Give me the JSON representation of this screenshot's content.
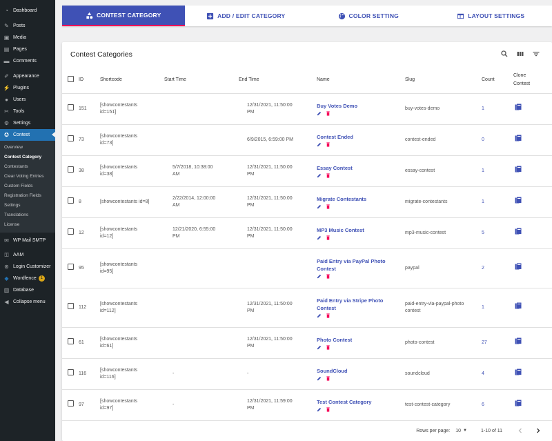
{
  "sidebar": {
    "items": [
      {
        "label": "Dashboard",
        "icon": "dashboard-icon"
      },
      {
        "label": "Posts",
        "icon": "pin-icon"
      },
      {
        "label": "Media",
        "icon": "media-icon"
      },
      {
        "label": "Pages",
        "icon": "pages-icon"
      },
      {
        "label": "Comments",
        "icon": "comment-icon"
      },
      {
        "label": "Appearance",
        "icon": "brush-icon"
      },
      {
        "label": "Plugins",
        "icon": "plug-icon"
      },
      {
        "label": "Users",
        "icon": "user-icon"
      },
      {
        "label": "Tools",
        "icon": "wrench-icon"
      },
      {
        "label": "Settings",
        "icon": "settings-icon"
      },
      {
        "label": "Contest",
        "icon": "award-icon"
      }
    ],
    "submenu": [
      "Overview",
      "Contest Category",
      "Contestants",
      "Clear Voting Entries",
      "Custom Fields",
      "Registration Fields",
      "Settings",
      "Translations",
      "License"
    ],
    "lower": [
      {
        "label": "WP Mail SMTP",
        "icon": "mail-icon"
      },
      {
        "label": "AAM",
        "icon": "lock-icon"
      },
      {
        "label": "Login Customizer",
        "icon": "login-icon"
      },
      {
        "label": "Wordfence",
        "icon": "shield-icon",
        "badge": "1"
      },
      {
        "label": "Database",
        "icon": "database-icon"
      },
      {
        "label": "Collapse menu",
        "icon": "collapse-icon"
      }
    ]
  },
  "tabs": [
    "CONTEST CATEGORY",
    "ADD / EDIT CATEGORY",
    "COLOR SETTING",
    "LAYOUT SETTINGS"
  ],
  "card": {
    "title": "Contest Categories"
  },
  "table": {
    "headers": {
      "id": "ID",
      "shortcode": "Shortcode",
      "start": "Start Time",
      "end": "End Time",
      "name": "Name",
      "slug": "Slug",
      "count": "Count",
      "clone1": "Clone",
      "clone2": "Contest"
    },
    "rows": [
      {
        "id": "151",
        "sc1": "[showcontestants",
        "sc2": "id=151]",
        "st1": "",
        "st2": "",
        "et1": "12/31/2021, 11:50:00",
        "et2": "PM",
        "name1": "Buy Votes Demo",
        "name2": "",
        "slug1": "buy-votes-demo",
        "slug2": "",
        "count": "1"
      },
      {
        "id": "73",
        "sc1": "[showcontestants",
        "sc2": "id=73]",
        "st1": "",
        "st2": "",
        "et1": "6/9/2015, 6:59:00 PM",
        "et2": "",
        "name1": "Contest Ended",
        "name2": "",
        "slug1": "contest-ended",
        "slug2": "",
        "count": "0"
      },
      {
        "id": "38",
        "sc1": "[showcontestants",
        "sc2": "id=38]",
        "st1": "5/7/2018, 10:38:00",
        "st2": "AM",
        "et1": "12/31/2021, 11:50:00",
        "et2": "PM",
        "name1": "Essay Contest",
        "name2": "",
        "slug1": "essay-contest",
        "slug2": "",
        "count": "1"
      },
      {
        "id": "8",
        "sc1": "[showcontestants id=8]",
        "sc2": "",
        "st1": "2/22/2014, 12:00:00",
        "st2": "AM",
        "et1": "12/31/2021, 11:50:00",
        "et2": "PM",
        "name1": "Migrate Contestants",
        "name2": "",
        "slug1": "migrate-contestants",
        "slug2": "",
        "count": "1"
      },
      {
        "id": "12",
        "sc1": "[showcontestants",
        "sc2": "id=12]",
        "st1": "12/21/2020, 6:55:00",
        "st2": "PM",
        "et1": "12/31/2021, 11:50:00",
        "et2": "PM",
        "name1": "MP3 Music Contest",
        "name2": "",
        "slug1": "mp3-music-contest",
        "slug2": "",
        "count": "5"
      },
      {
        "id": "95",
        "sc1": "[showcontestants",
        "sc2": "id=95]",
        "st1": "",
        "st2": "",
        "et1": "",
        "et2": "",
        "name1": "Paid Entry via PayPal Photo",
        "name2": "Contest",
        "slug1": "paypal",
        "slug2": "",
        "count": "2"
      },
      {
        "id": "112",
        "sc1": "[showcontestants",
        "sc2": "id=112]",
        "st1": "",
        "st2": "",
        "et1": "12/31/2021, 11:50:00",
        "et2": "PM",
        "name1": "Paid Entry via Stripe Photo",
        "name2": "Contest",
        "slug1": "paid-entry-via-paypal-photo",
        "slug2": "contest",
        "count": "1"
      },
      {
        "id": "61",
        "sc1": "[showcontestants",
        "sc2": "id=61]",
        "st1": "",
        "st2": "",
        "et1": "12/31/2021, 11:50:00",
        "et2": "PM",
        "name1": "Photo Contest",
        "name2": "",
        "slug1": "photo-contest",
        "slug2": "",
        "count": "27"
      },
      {
        "id": "116",
        "sc1": "[showcontestants",
        "sc2": "id=116]",
        "st1": "-",
        "st2": "",
        "et1": "-",
        "et2": "",
        "name1": "SoundCloud",
        "name2": "",
        "slug1": "soundcloud",
        "slug2": "",
        "count": "4"
      },
      {
        "id": "97",
        "sc1": "[showcontestants",
        "sc2": "id=97]",
        "st1": "-",
        "st2": "",
        "et1": "12/31/2021, 11:59:00",
        "et2": "PM",
        "name1": "Test Contest Category",
        "name2": "",
        "slug1": "test-contest-category",
        "slug2": "",
        "count": "6"
      }
    ]
  },
  "pagination": {
    "rows_label": "Rows per page:",
    "rows_value": "10",
    "range": "1-10 of 11"
  },
  "colors": {
    "primary": "#3f51b5",
    "accent": "#f50057",
    "sidebar": "#1d2327",
    "wp_blue": "#2271b1"
  }
}
